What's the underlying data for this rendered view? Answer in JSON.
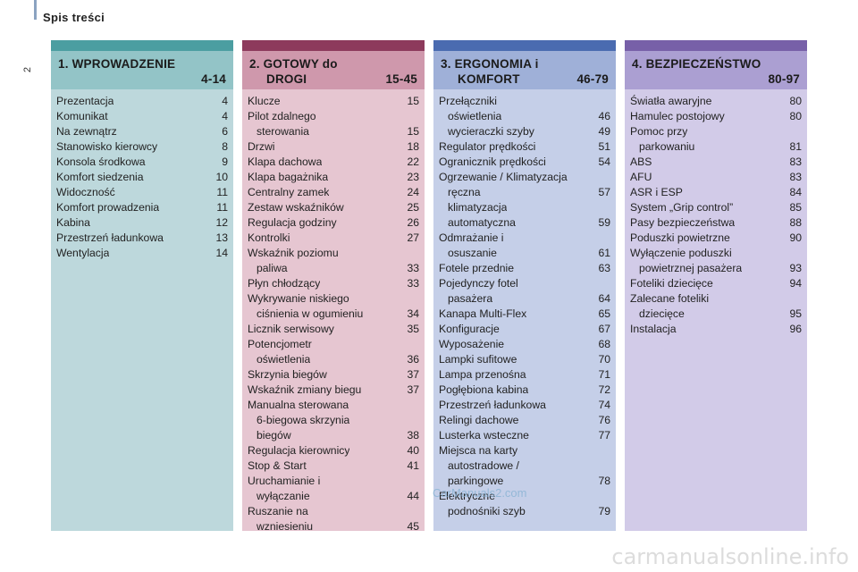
{
  "page": {
    "title": "Spis treści",
    "number": "2",
    "watermark_mid": "CarManuals2.com",
    "watermark_bottom": "carmanualsonline.info"
  },
  "columns": [
    {
      "head_line1": "1. WPROWADZENIE",
      "head_line2": "4-14",
      "colors": {
        "top": "#4b9ea1",
        "head": "#93c4c7",
        "body": "#bdd8dc"
      },
      "entries": [
        {
          "title": "Prezentacja",
          "page": "4"
        },
        {
          "title": "Komunikat",
          "page": "4"
        },
        {
          "title": "Na zewnątrz",
          "page": "6"
        },
        {
          "title": "Stanowisko kierowcy",
          "page": "8"
        },
        {
          "title": "Konsola środkowa",
          "page": "9"
        },
        {
          "title": "Komfort siedzenia",
          "page": "10"
        },
        {
          "title": "Widoczność",
          "page": "11"
        },
        {
          "title": "Komfort prowadzenia",
          "page": "11"
        },
        {
          "title": "Kabina",
          "page": "12"
        },
        {
          "title": "Przestrzeń ładunkowa",
          "page": "13"
        },
        {
          "title": "Wentylacja",
          "page": "14"
        }
      ]
    },
    {
      "head_line1": "2. GOTOWY do",
      "head_line2_left": "DROGI",
      "head_line2": "15-45",
      "colors": {
        "top": "#8d3a5c",
        "head": "#cf98ac",
        "body": "#e6c6d1"
      },
      "entries": [
        {
          "title": "Klucze",
          "page": "15"
        },
        {
          "title": "Pilot zdalnego",
          "page": ""
        },
        {
          "title": "sterowania",
          "page": "15",
          "indent": true
        },
        {
          "title": "Drzwi",
          "page": "18"
        },
        {
          "title": "Klapa dachowa",
          "page": "22"
        },
        {
          "title": "Klapa bagażnika",
          "page": "23"
        },
        {
          "title": "Centralny zamek",
          "page": "24"
        },
        {
          "title": "Zestaw wskaźników",
          "page": "25"
        },
        {
          "title": "Regulacja godziny",
          "page": "26"
        },
        {
          "title": "Kontrolki",
          "page": "27"
        },
        {
          "title": "Wskaźnik poziomu",
          "page": ""
        },
        {
          "title": "paliwa",
          "page": "33",
          "indent": true
        },
        {
          "title": "Płyn chłodzący",
          "page": "33"
        },
        {
          "title": "Wykrywanie niskiego",
          "page": ""
        },
        {
          "title": "ciśnienia w ogumieniu",
          "page": "34",
          "indent": true
        },
        {
          "title": "Licznik serwisowy",
          "page": "35"
        },
        {
          "title": "Potencjometr",
          "page": ""
        },
        {
          "title": "oświetlenia",
          "page": "36",
          "indent": true
        },
        {
          "title": "Skrzynia biegów",
          "page": "37"
        },
        {
          "title": "Wskaźnik zmiany biegu",
          "page": "37"
        },
        {
          "title": "Manualna sterowana",
          "page": ""
        },
        {
          "title": "6-biegowa skrzynia",
          "page": "",
          "indent": true
        },
        {
          "title": "biegów",
          "page": "38",
          "indent": true
        },
        {
          "title": "Regulacja kierownicy",
          "page": "40"
        },
        {
          "title": "Stop & Start",
          "page": "41"
        },
        {
          "title": "Uruchamianie i",
          "page": ""
        },
        {
          "title": "wyłączanie",
          "page": "44",
          "indent": true
        },
        {
          "title": "Ruszanie na",
          "page": ""
        },
        {
          "title": "wzniesieniu",
          "page": "45",
          "indent": true
        }
      ]
    },
    {
      "head_line1": "3. ERGONOMIA i",
      "head_line2_left": "KOMFORT",
      "head_line2": "46-79",
      "colors": {
        "top": "#4a6bb0",
        "head": "#9fb0d8",
        "body": "#c5cfe8"
      },
      "entries": [
        {
          "title": "Przełączniki",
          "page": ""
        },
        {
          "title": "oświetlenia",
          "page": "46",
          "indent": true
        },
        {
          "title": "wycieraczki szyby",
          "page": "49",
          "indent": true
        },
        {
          "title": "Regulator prędkości",
          "page": "51"
        },
        {
          "title": "Ogranicznik prędkości",
          "page": "54"
        },
        {
          "title": "Ogrzewanie / Klimatyzacja",
          "page": ""
        },
        {
          "title": "ręczna",
          "page": "57",
          "indent": true
        },
        {
          "title": "klimatyzacja",
          "page": "",
          "indent": true
        },
        {
          "title": "automatyczna",
          "page": "59",
          "indent": true
        },
        {
          "title": "Odmrażanie i",
          "page": ""
        },
        {
          "title": "osuszanie",
          "page": "61",
          "indent": true
        },
        {
          "title": "Fotele przednie",
          "page": "63"
        },
        {
          "title": "Pojedynczy fotel",
          "page": ""
        },
        {
          "title": "pasażera",
          "page": "64",
          "indent": true
        },
        {
          "title": "Kanapa Multi-Flex",
          "page": "65"
        },
        {
          "title": "Konfiguracje",
          "page": "67"
        },
        {
          "title": "Wyposażenie",
          "page": "68"
        },
        {
          "title": "Lampki sufitowe",
          "page": "70"
        },
        {
          "title": "Lampa przenośna",
          "page": "71"
        },
        {
          "title": "Pogłębiona kabina",
          "page": "72"
        },
        {
          "title": "Przestrzeń ładunkowa",
          "page": "74"
        },
        {
          "title": "Relingi dachowe",
          "page": "76"
        },
        {
          "title": "Lusterka wsteczne",
          "page": "77"
        },
        {
          "title": "Miejsca na karty",
          "page": ""
        },
        {
          "title": "autostradowe /",
          "page": "",
          "indent": true
        },
        {
          "title": "parkingowe",
          "page": "78",
          "indent": true
        },
        {
          "title": "Elektryczne",
          "page": ""
        },
        {
          "title": "podnośniki szyb",
          "page": "79",
          "indent": true
        }
      ]
    },
    {
      "head_line1": "4. BEZPIECZEŃSTWO",
      "head_line2": "80-97",
      "colors": {
        "top": "#7760a8",
        "head": "#ab9fd2",
        "body": "#d2cbe8"
      },
      "entries": [
        {
          "title": "Światła awaryjne",
          "page": "80"
        },
        {
          "title": "Hamulec postojowy",
          "page": "80"
        },
        {
          "title": "Pomoc przy",
          "page": ""
        },
        {
          "title": "parkowaniu",
          "page": "81",
          "indent": true
        },
        {
          "title": "ABS",
          "page": "83"
        },
        {
          "title": "AFU",
          "page": "83"
        },
        {
          "title": "ASR i ESP",
          "page": "84"
        },
        {
          "title": "System „Grip control”",
          "page": "85"
        },
        {
          "title": "Pasy bezpieczeństwa",
          "page": "88"
        },
        {
          "title": "Poduszki powietrzne",
          "page": "90"
        },
        {
          "title": "Wyłączenie poduszki",
          "page": ""
        },
        {
          "title": "powietrznej pasażera",
          "page": "93",
          "indent": true
        },
        {
          "title": "Foteliki dziecięce",
          "page": "94"
        },
        {
          "title": "Zalecane foteliki",
          "page": ""
        },
        {
          "title": "dziecięce",
          "page": "95",
          "indent": true
        },
        {
          "title": "Instalacja",
          "page": "96"
        }
      ]
    }
  ]
}
